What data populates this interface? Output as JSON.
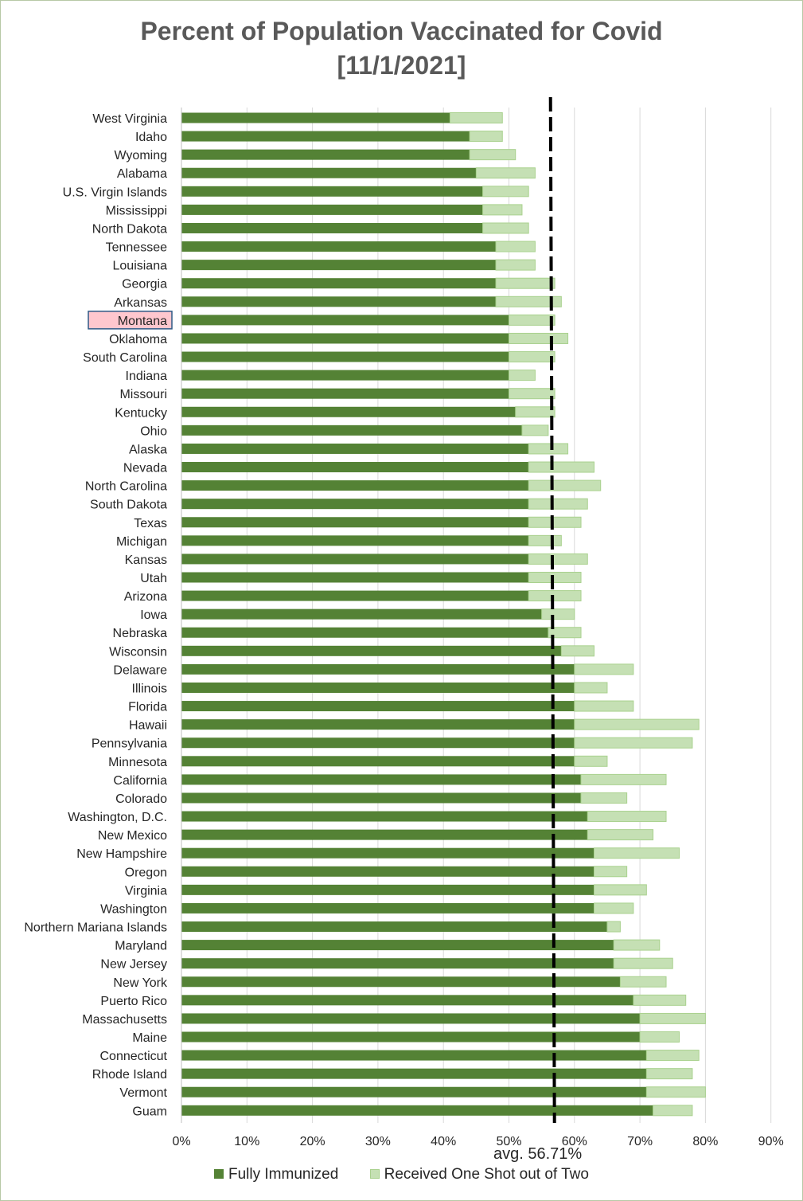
{
  "title": {
    "line1": "Percent of Population Vaccinated for Covid",
    "line2": "[11/1/2021]"
  },
  "colors": {
    "fully": "#548235",
    "one_shot": "#c5e0b4",
    "one_shot_border": "#a9d18e",
    "highlight_fill": "#ffc7ce",
    "highlight_border": "#2e5a87",
    "grid": "#d9d9d9",
    "avg_line": "#000000"
  },
  "highlight": "Montana",
  "avg_label": "avg. 56.71%",
  "legend": {
    "fully": "Fully Immunized",
    "one_shot": "Received One Shot out of Two"
  },
  "chart_data": {
    "type": "bar",
    "orientation": "horizontal",
    "stacked": true,
    "xlim": [
      0,
      90
    ],
    "x_ticks": [
      "0%",
      "10%",
      "20%",
      "30%",
      "40%",
      "50%",
      "60%",
      "70%",
      "80%",
      "90%"
    ],
    "grid": "vertical",
    "legend_position": "bottom",
    "average": 56.71,
    "categories": [
      "West Virginia",
      "Idaho",
      "Wyoming",
      "Alabama",
      "U.S. Virgin Islands",
      "Mississippi",
      "North Dakota",
      "Tennessee",
      "Louisiana",
      "Georgia",
      "Arkansas",
      "Montana",
      "Oklahoma",
      "South Carolina",
      "Indiana",
      "Missouri",
      "Kentucky",
      "Ohio",
      "Alaska",
      "Nevada",
      "North Carolina",
      "South Dakota",
      "Texas",
      "Michigan",
      "Kansas",
      "Utah",
      "Arizona",
      "Iowa",
      "Nebraska",
      "Wisconsin",
      "Delaware",
      "Illinois",
      "Florida",
      "Hawaii",
      "Pennsylvania",
      "Minnesota",
      "California",
      "Colorado",
      "Washington, D.C.",
      "New Mexico",
      "New Hampshire",
      "Oregon",
      "Virginia",
      "Washington",
      "Northern Mariana Islands",
      "Maryland",
      "New Jersey",
      "New York",
      "Puerto Rico",
      "Massachusetts",
      "Maine",
      "Connecticut",
      "Rhode Island",
      "Vermont",
      "Guam"
    ],
    "series": [
      {
        "name": "Fully Immunized",
        "values": [
          41,
          44,
          44,
          45,
          46,
          46,
          46,
          48,
          48,
          48,
          48,
          50,
          50,
          50,
          50,
          50,
          51,
          52,
          53,
          53,
          53,
          53,
          53,
          53,
          53,
          53,
          53,
          55,
          56,
          58,
          60,
          60,
          60,
          60,
          60,
          60,
          61,
          61,
          62,
          62,
          63,
          63,
          63,
          63,
          65,
          66,
          66,
          67,
          69,
          70,
          70,
          71,
          71,
          71,
          72
        ]
      },
      {
        "name": "Received One Shot out of Two",
        "values": [
          8,
          5,
          7,
          9,
          7,
          6,
          7,
          6,
          6,
          9,
          10,
          7,
          9,
          7,
          4,
          7,
          6,
          4,
          6,
          10,
          11,
          9,
          8,
          5,
          9,
          8,
          8,
          5,
          5,
          5,
          9,
          5,
          9,
          19,
          18,
          5,
          13,
          7,
          12,
          10,
          13,
          5,
          8,
          6,
          2,
          7,
          9,
          7,
          8,
          10,
          6,
          8,
          7,
          9,
          6
        ]
      }
    ]
  }
}
